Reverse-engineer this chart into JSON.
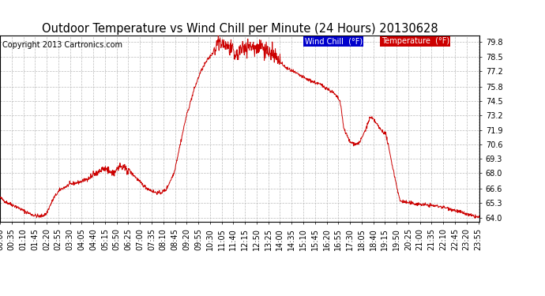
{
  "title": "Outdoor Temperature vs Wind Chill per Minute (24 Hours) 20130628",
  "copyright": "Copyright 2013 Cartronics.com",
  "legend_wind_chill": "Wind Chill  (°F)",
  "legend_temperature": "Temperature  (°F)",
  "legend_wind_chill_bg": "#0000cc",
  "legend_temperature_bg": "#cc0000",
  "line_color": "#cc0000",
  "background_color": "#ffffff",
  "grid_color": "#bbbbbb",
  "yticks": [
    64.0,
    65.3,
    66.6,
    68.0,
    69.3,
    70.6,
    71.9,
    73.2,
    74.5,
    75.8,
    77.2,
    78.5,
    79.8
  ],
  "ylim": [
    63.6,
    80.4
  ],
  "title_fontsize": 10.5,
  "tick_fontsize": 7,
  "copyright_fontsize": 7,
  "legend_fontsize": 7
}
